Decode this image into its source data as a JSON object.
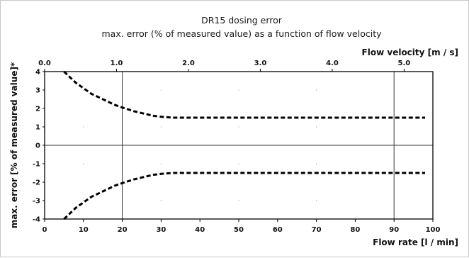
{
  "chart_data": {
    "type": "line",
    "title": "DR15 dosing error",
    "subtitle": "max. error (% of measured value) as a function of flow velocity",
    "xlabel": "Flow rate [l / min]",
    "x2label": "Flow velocity [m / s]",
    "ylabel": "max. error [% of measured value]*",
    "xlim": [
      0,
      100
    ],
    "ylim": [
      -4,
      4
    ],
    "x2lim": [
      0.0,
      5.4
    ],
    "x_ticks": [
      "0",
      "10",
      "20",
      "30",
      "40",
      "50",
      "60",
      "70",
      "80",
      "90",
      "100"
    ],
    "x2_ticks": [
      "0.0",
      "1.0",
      "2.0",
      "3.0",
      "4.0",
      "5.0"
    ],
    "y_ticks": [
      "4",
      "3",
      "2",
      "1",
      "0",
      "-1",
      "-2",
      "-3",
      "-4"
    ],
    "grid": {
      "vertical_x": [
        20,
        90
      ],
      "horizontal_y": [
        0
      ]
    },
    "series": [
      {
        "line_style": "dashed",
        "color": "#000000",
        "x": [
          5,
          8,
          10,
          12,
          15,
          18,
          20,
          23,
          26,
          28,
          30,
          33,
          36,
          40,
          50,
          60,
          70,
          80,
          90,
          98
        ],
        "y": [
          4.0,
          3.4,
          3.1,
          2.8,
          2.5,
          2.2,
          2.05,
          1.85,
          1.7,
          1.6,
          1.55,
          1.5,
          1.5,
          1.5,
          1.5,
          1.5,
          1.5,
          1.5,
          1.5,
          1.5
        ]
      },
      {
        "line_style": "dashed",
        "color": "#000000",
        "x": [
          5,
          8,
          10,
          12,
          15,
          18,
          20,
          23,
          26,
          28,
          30,
          33,
          36,
          40,
          50,
          60,
          70,
          80,
          90,
          98
        ],
        "y": [
          -4.0,
          -3.4,
          -3.1,
          -2.8,
          -2.5,
          -2.2,
          -2.05,
          -1.85,
          -1.7,
          -1.6,
          -1.55,
          -1.5,
          -1.5,
          -1.5,
          -1.5,
          -1.5,
          -1.5,
          -1.5,
          -1.5,
          -1.5
        ]
      }
    ]
  }
}
